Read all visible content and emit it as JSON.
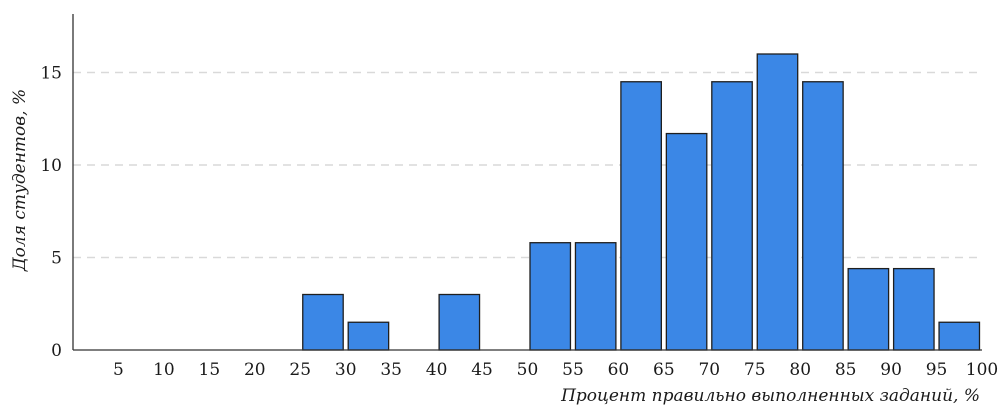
{
  "chart_data": {
    "type": "bar",
    "title": "",
    "xlabel": "Процент правильно выполненных заданий, %",
    "ylabel": "Доля студентов, %",
    "x_ticks": [
      "5",
      "10",
      "15",
      "20",
      "25",
      "30",
      "35",
      "40",
      "45",
      "50",
      "55",
      "60",
      "65",
      "70",
      "75",
      "80",
      "85",
      "90",
      "95",
      "100"
    ],
    "y_ticks": [
      "0",
      "5",
      "10",
      "15"
    ],
    "ylim": [
      0,
      18.5
    ],
    "bins": [
      {
        "from": 25,
        "to": 30,
        "value": 3.0
      },
      {
        "from": 30,
        "to": 35,
        "value": 1.5
      },
      {
        "from": 40,
        "to": 45,
        "value": 3.0
      },
      {
        "from": 50,
        "to": 55,
        "value": 5.8
      },
      {
        "from": 55,
        "to": 60,
        "value": 5.8
      },
      {
        "from": 60,
        "to": 65,
        "value": 14.5
      },
      {
        "from": 65,
        "to": 70,
        "value": 11.7
      },
      {
        "from": 70,
        "to": 75,
        "value": 14.5
      },
      {
        "from": 75,
        "to": 80,
        "value": 16.0
      },
      {
        "from": 80,
        "to": 85,
        "value": 14.5
      },
      {
        "from": 85,
        "to": 90,
        "value": 4.4
      },
      {
        "from": 90,
        "to": 95,
        "value": 4.4
      },
      {
        "from": 95,
        "to": 100,
        "value": 1.5
      }
    ],
    "grid": true,
    "bar_color": "#3b87e6",
    "bar_edge_color": "#1f1f1f",
    "grid_color": "#d9d9d9"
  }
}
